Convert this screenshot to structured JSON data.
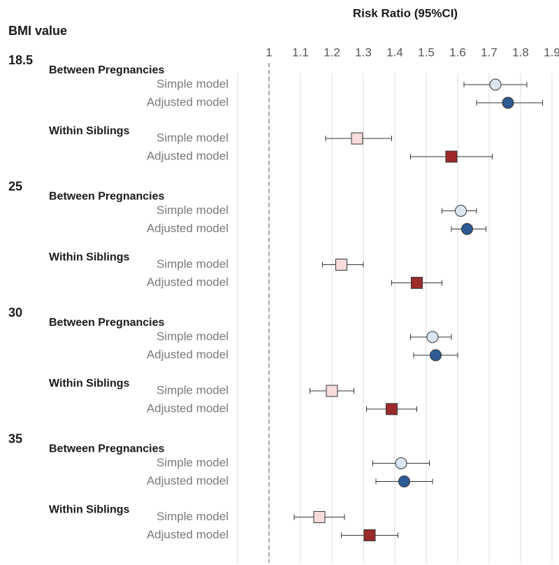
{
  "chart_data": {
    "type": "forest",
    "title": "Risk Ratio (95%CI)",
    "row_header": "BMI value",
    "xlim": [
      0.9,
      1.9
    ],
    "xticks": [
      1,
      1.1,
      1.2,
      1.3,
      1.4,
      1.5,
      1.6,
      1.7,
      1.8,
      1.9
    ],
    "reference": 1,
    "grid": true,
    "groups": [
      {
        "label": "18.5",
        "subgroups": [
          {
            "label": "Between Pregnancies",
            "marker": "circle",
            "rows": [
              {
                "label": "Simple model",
                "color": "#dce6f2",
                "value": 1.72,
                "lower": 1.62,
                "upper": 1.82
              },
              {
                "label": "Adjusted model",
                "color": "#2e5b94",
                "value": 1.76,
                "lower": 1.66,
                "upper": 1.87
              }
            ]
          },
          {
            "label": "Within Siblings",
            "marker": "square",
            "rows": [
              {
                "label": "Simple model",
                "color": "#f8dcdc",
                "value": 1.28,
                "lower": 1.18,
                "upper": 1.39
              },
              {
                "label": "Adjusted model",
                "color": "#9b2a2a",
                "value": 1.58,
                "lower": 1.45,
                "upper": 1.71
              }
            ]
          }
        ]
      },
      {
        "label": "25",
        "subgroups": [
          {
            "label": "Between Pregnancies",
            "marker": "circle",
            "rows": [
              {
                "label": "Simple model",
                "color": "#dce6f2",
                "value": 1.61,
                "lower": 1.55,
                "upper": 1.66
              },
              {
                "label": "Adjusted model",
                "color": "#2e5b94",
                "value": 1.63,
                "lower": 1.58,
                "upper": 1.69
              }
            ]
          },
          {
            "label": "Within Siblings",
            "marker": "square",
            "rows": [
              {
                "label": "Simple model",
                "color": "#f8dcdc",
                "value": 1.23,
                "lower": 1.17,
                "upper": 1.3
              },
              {
                "label": "Adjusted model",
                "color": "#9b2a2a",
                "value": 1.47,
                "lower": 1.39,
                "upper": 1.55
              }
            ]
          }
        ]
      },
      {
        "label": "30",
        "subgroups": [
          {
            "label": "Between Pregnancies",
            "marker": "circle",
            "rows": [
              {
                "label": "Simple model",
                "color": "#dce6f2",
                "value": 1.52,
                "lower": 1.45,
                "upper": 1.58
              },
              {
                "label": "Adjusted model",
                "color": "#2e5b94",
                "value": 1.53,
                "lower": 1.46,
                "upper": 1.6
              }
            ]
          },
          {
            "label": "Within Siblings",
            "marker": "square",
            "rows": [
              {
                "label": "Simple model",
                "color": "#f8dcdc",
                "value": 1.2,
                "lower": 1.13,
                "upper": 1.27
              },
              {
                "label": "Adjusted model",
                "color": "#9b2a2a",
                "value": 1.39,
                "lower": 1.31,
                "upper": 1.47
              }
            ]
          }
        ]
      },
      {
        "label": "35",
        "subgroups": [
          {
            "label": "Between Pregnancies",
            "marker": "circle",
            "rows": [
              {
                "label": "Simple model",
                "color": "#dce6f2",
                "value": 1.42,
                "lower": 1.33,
                "upper": 1.51
              },
              {
                "label": "Adjusted model",
                "color": "#2e5b94",
                "value": 1.43,
                "lower": 1.34,
                "upper": 1.52
              }
            ]
          },
          {
            "label": "Within Siblings",
            "marker": "square",
            "rows": [
              {
                "label": "Simple model",
                "color": "#f8dcdc",
                "value": 1.16,
                "lower": 1.08,
                "upper": 1.24
              },
              {
                "label": "Adjusted model",
                "color": "#9b2a2a",
                "value": 1.32,
                "lower": 1.23,
                "upper": 1.41
              }
            ]
          }
        ]
      }
    ]
  }
}
